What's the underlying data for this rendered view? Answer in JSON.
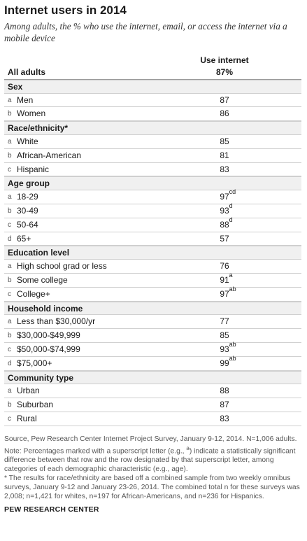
{
  "title": "Internet users in 2014",
  "subtitle": "Among adults, the % who use the internet, email, or access the internet via a mobile device",
  "chart_data": {
    "type": "table",
    "column_header": "Use internet",
    "overall": {
      "label": "All adults",
      "value": "87%"
    },
    "groups": [
      {
        "name": "Sex",
        "rows": [
          {
            "letter": "a",
            "label": "Men",
            "value": "87",
            "sup": ""
          },
          {
            "letter": "b",
            "label": "Women",
            "value": "86",
            "sup": ""
          }
        ]
      },
      {
        "name": "Race/ethnicity*",
        "rows": [
          {
            "letter": "a",
            "label": "White",
            "value": "85",
            "sup": ""
          },
          {
            "letter": "b",
            "label": "African-American",
            "value": "81",
            "sup": ""
          },
          {
            "letter": "c",
            "label": "Hispanic",
            "value": "83",
            "sup": ""
          }
        ]
      },
      {
        "name": "Age group",
        "rows": [
          {
            "letter": "a",
            "label": "18-29",
            "value": "97",
            "sup": "cd"
          },
          {
            "letter": "b",
            "label": "30-49",
            "value": "93",
            "sup": "d"
          },
          {
            "letter": "c",
            "label": "50-64",
            "value": "88",
            "sup": "d"
          },
          {
            "letter": "d",
            "label": "65+",
            "value": "57",
            "sup": ""
          }
        ]
      },
      {
        "name": "Education level",
        "rows": [
          {
            "letter": "a",
            "label": "High school grad or less",
            "value": "76",
            "sup": ""
          },
          {
            "letter": "b",
            "label": "Some college",
            "value": "91",
            "sup": "a"
          },
          {
            "letter": "c",
            "label": "College+",
            "value": "97",
            "sup": "ab"
          }
        ]
      },
      {
        "name": "Household income",
        "rows": [
          {
            "letter": "a",
            "label": "Less than $30,000/yr",
            "value": "77",
            "sup": ""
          },
          {
            "letter": "b",
            "label": "$30,000-$49,999",
            "value": "85",
            "sup": ""
          },
          {
            "letter": "c",
            "label": "$50,000-$74,999",
            "value": "93",
            "sup": "ab"
          },
          {
            "letter": "d",
            "label": "$75,000+",
            "value": "99",
            "sup": "ab"
          }
        ]
      },
      {
        "name": "Community type",
        "rows": [
          {
            "letter": "a",
            "label": "Urban",
            "value": "88",
            "sup": ""
          },
          {
            "letter": "b",
            "label": "Suburban",
            "value": "87",
            "sup": ""
          },
          {
            "letter": "c",
            "label": "Rural",
            "value": "83",
            "sup": ""
          }
        ]
      }
    ]
  },
  "notes": {
    "source": "Source, Pew Research Center Internet Project Survey, January 9-12, 2014. N=1,006 adults.",
    "note_before": "Note: Percentages marked with a superscript letter (e.g., ",
    "note_sup": "a",
    "note_after": ") indicate a statistically significant difference between that row and the row designated by that superscript letter, among categories of each demographic characteristic (e.g., age).",
    "asterisk": "* The results for race/ethnicity are based off a combined sample from two weekly omnibus surveys, January 9-12 and January 23-26, 2014. The combined total n for these surveys was 2,008; n=1,421 for whites, n=197 for African-Americans, and n=236 for Hispanics."
  },
  "credit": "PEW RESEARCH CENTER"
}
